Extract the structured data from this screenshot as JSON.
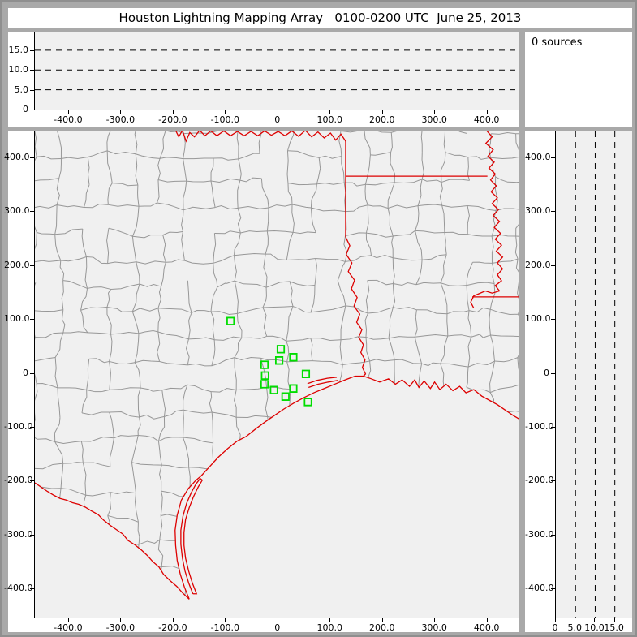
{
  "title": "Houston Lightning Mapping Array   0100-0200 UTC  June 25, 2013",
  "sources_label": "0 sources",
  "colors": {
    "window_bg": "#a9a9a9",
    "panel_bg": "#ffffff",
    "plot_bg": "#f0f0f0",
    "county_line": "#979797",
    "state_border": "#dd0000",
    "station_green": "#00dd00",
    "axis": "#000000"
  },
  "panels": {
    "alt_ew": {
      "y_ticks": [
        {
          "v": 15,
          "label": "15.0"
        },
        {
          "v": 10,
          "label": "10.0"
        },
        {
          "v": 5,
          "label": "5.0"
        },
        {
          "v": 0,
          "label": "0"
        }
      ],
      "x_ticks": [
        {
          "v": -400,
          "label": "-400.0"
        },
        {
          "v": -300,
          "label": "-300.0"
        },
        {
          "v": -200,
          "label": "-200.0"
        },
        {
          "v": -100,
          "label": "-100.0"
        },
        {
          "v": 0,
          "label": "0"
        },
        {
          "v": 100,
          "label": "100.0"
        },
        {
          "v": 200,
          "label": "200.0"
        },
        {
          "v": 300,
          "label": "300.0"
        },
        {
          "v": 400,
          "label": "400.0"
        }
      ],
      "dashed_levels": [
        5,
        10,
        15
      ],
      "x_range": [
        -465,
        461
      ],
      "y_range": [
        0,
        19.7
      ]
    },
    "map": {
      "y_ticks": [
        {
          "v": 400,
          "label": "400.0"
        },
        {
          "v": 300,
          "label": "300.0"
        },
        {
          "v": 200,
          "label": "200.0"
        },
        {
          "v": 100,
          "label": "100.0"
        },
        {
          "v": 0,
          "label": "0"
        },
        {
          "v": -100,
          "label": "-100.0"
        },
        {
          "v": -200,
          "label": "-200.0"
        },
        {
          "v": -300,
          "label": "-300.0"
        },
        {
          "v": -400,
          "label": "-400.0"
        }
      ],
      "x_ticks": [
        {
          "v": -400,
          "label": "-400.0"
        },
        {
          "v": -300,
          "label": "-300.0"
        },
        {
          "v": -200,
          "label": "-200.0"
        },
        {
          "v": -100,
          "label": "-100.0"
        },
        {
          "v": 0,
          "label": "0"
        },
        {
          "v": 100,
          "label": "100.0"
        },
        {
          "v": 200,
          "label": "200.0"
        },
        {
          "v": 300,
          "label": "300.0"
        },
        {
          "v": 400,
          "label": "400.0"
        }
      ],
      "x_range": [
        -465,
        461
      ],
      "y_range": [
        -454,
        448
      ]
    },
    "alt_ns": {
      "x_ticks": [
        {
          "v": 0,
          "label": "0"
        },
        {
          "v": 5,
          "label": "5.0"
        },
        {
          "v": 10,
          "label": "10.0"
        },
        {
          "v": 15,
          "label": "15.0"
        }
      ],
      "y_ticks": [
        {
          "v": 400,
          "label": "400.0"
        },
        {
          "v": 300,
          "label": "300.0"
        },
        {
          "v": 200,
          "label": "200.0"
        },
        {
          "v": 100,
          "label": "100.0"
        },
        {
          "v": 0,
          "label": "0"
        },
        {
          "v": -100,
          "label": "-100.0"
        },
        {
          "v": -200,
          "label": "-200.0"
        },
        {
          "v": -300,
          "label": "-300.0"
        },
        {
          "v": -400,
          "label": "-400.0"
        }
      ],
      "dashed_levels": [
        5,
        10,
        15
      ],
      "x_range": [
        0,
        19.4
      ],
      "y_range": [
        -454,
        448
      ]
    }
  },
  "map_features": {
    "stations": [
      [
        -91,
        96
      ],
      [
        5,
        44
      ],
      [
        29,
        29
      ],
      [
        2,
        23
      ],
      [
        -26,
        15
      ],
      [
        53,
        -2
      ],
      [
        -25,
        -5
      ],
      [
        -26,
        -21
      ],
      [
        29,
        -29
      ],
      [
        -8,
        -32
      ],
      [
        14,
        -44
      ],
      [
        57,
        -54
      ]
    ],
    "red_borders": {
      "red_river": [
        [
          -197,
          452
        ],
        [
          -190,
          438
        ],
        [
          -183,
          450
        ],
        [
          -176,
          430
        ],
        [
          -169,
          446
        ],
        [
          -160,
          438
        ],
        [
          -150,
          450
        ],
        [
          -140,
          440
        ],
        [
          -129,
          449
        ],
        [
          -117,
          440
        ],
        [
          -104,
          449
        ],
        [
          -91,
          440
        ],
        [
          -78,
          448
        ],
        [
          -65,
          440
        ],
        [
          -52,
          448
        ],
        [
          -39,
          440
        ],
        [
          -26,
          449
        ],
        [
          -13,
          441
        ],
        [
          0,
          448
        ],
        [
          13,
          440
        ],
        [
          26,
          449
        ],
        [
          39,
          439
        ],
        [
          52,
          450
        ],
        [
          64,
          438
        ],
        [
          76,
          447
        ],
        [
          88,
          436
        ],
        [
          100,
          445
        ],
        [
          110,
          432
        ],
        [
          120,
          443
        ],
        [
          129,
          430
        ]
      ],
      "tx_ar_line": [
        [
          129,
          430
        ],
        [
          129,
          252
        ]
      ],
      "ar_la_line": [
        [
          129,
          365
        ],
        [
          400,
          365
        ]
      ],
      "sabine_river": [
        [
          129,
          252
        ],
        [
          137,
          236
        ],
        [
          130,
          220
        ],
        [
          141,
          204
        ],
        [
          134,
          188
        ],
        [
          146,
          172
        ],
        [
          140,
          156
        ],
        [
          151,
          140
        ],
        [
          145,
          124
        ],
        [
          156,
          109
        ],
        [
          150,
          94
        ],
        [
          160,
          80
        ],
        [
          154,
          66
        ],
        [
          163,
          52
        ],
        [
          158,
          38
        ],
        [
          166,
          24
        ],
        [
          161,
          10
        ],
        [
          167,
          -2
        ],
        [
          163,
          -6
        ]
      ],
      "mississippi_river": [
        [
          398,
          450
        ],
        [
          409,
          438
        ],
        [
          397,
          426
        ],
        [
          411,
          414
        ],
        [
          401,
          402
        ],
        [
          413,
          391
        ],
        [
          403,
          380
        ],
        [
          415,
          369
        ],
        [
          406,
          358
        ],
        [
          417,
          347
        ],
        [
          407,
          336
        ],
        [
          419,
          325
        ],
        [
          409,
          314
        ],
        [
          421,
          303
        ],
        [
          411,
          292
        ],
        [
          423,
          281
        ],
        [
          413,
          270
        ],
        [
          425,
          259
        ],
        [
          415,
          248
        ],
        [
          427,
          237
        ],
        [
          417,
          226
        ],
        [
          429,
          215
        ],
        [
          419,
          204
        ],
        [
          429,
          193
        ],
        [
          419,
          182
        ],
        [
          427,
          171
        ],
        [
          415,
          162
        ],
        [
          423,
          152
        ],
        [
          409,
          148
        ],
        [
          396,
          152
        ],
        [
          384,
          147
        ],
        [
          374,
          143
        ],
        [
          368,
          131
        ],
        [
          374,
          120
        ]
      ],
      "la_ms_line": [
        [
          371,
          141
        ],
        [
          466,
          141
        ]
      ],
      "coastline": [
        [
          -170,
          -420
        ],
        [
          -179,
          -398
        ],
        [
          -187,
          -374
        ],
        [
          -193,
          -348
        ],
        [
          -196,
          -320
        ],
        [
          -197,
          -292
        ],
        [
          -193,
          -264
        ],
        [
          -185,
          -236
        ],
        [
          -172,
          -215
        ],
        [
          -158,
          -200
        ],
        [
          -147,
          -191
        ],
        [
          -131,
          -174
        ],
        [
          -115,
          -157
        ],
        [
          -97,
          -141
        ],
        [
          -79,
          -127
        ],
        [
          -61,
          -118
        ],
        [
          -43,
          -104
        ],
        [
          -25,
          -91
        ],
        [
          -7,
          -79
        ],
        [
          11,
          -67
        ],
        [
          30,
          -56
        ],
        [
          49,
          -46
        ],
        [
          68,
          -37
        ],
        [
          88,
          -29
        ],
        [
          108,
          -21
        ],
        [
          128,
          -13
        ],
        [
          147,
          -6
        ],
        [
          163,
          -6
        ],
        [
          178,
          -11
        ],
        [
          194,
          -17
        ],
        [
          211,
          -11
        ],
        [
          224,
          -21
        ],
        [
          237,
          -13
        ],
        [
          251,
          -25
        ],
        [
          261,
          -13
        ],
        [
          269,
          -27
        ],
        [
          279,
          -15
        ],
        [
          291,
          -29
        ],
        [
          299,
          -17
        ],
        [
          309,
          -31
        ],
        [
          321,
          -21
        ],
        [
          334,
          -33
        ],
        [
          347,
          -25
        ],
        [
          359,
          -37
        ],
        [
          374,
          -31
        ],
        [
          389,
          -43
        ],
        [
          404,
          -51
        ],
        [
          419,
          -59
        ],
        [
          434,
          -69
        ],
        [
          449,
          -79
        ],
        [
          465,
          -88
        ]
      ],
      "rio_grande": [
        [
          -170,
          -420
        ],
        [
          -183,
          -408
        ],
        [
          -194,
          -396
        ],
        [
          -206,
          -386
        ],
        [
          -219,
          -374
        ],
        [
          -228,
          -360
        ],
        [
          -240,
          -350
        ],
        [
          -250,
          -339
        ],
        [
          -261,
          -329
        ],
        [
          -274,
          -319
        ],
        [
          -287,
          -311
        ],
        [
          -297,
          -299
        ],
        [
          -309,
          -291
        ],
        [
          -321,
          -283
        ],
        [
          -334,
          -273
        ],
        [
          -344,
          -263
        ],
        [
          -357,
          -256
        ],
        [
          -369,
          -249
        ],
        [
          -381,
          -244
        ],
        [
          -393,
          -241
        ],
        [
          -405,
          -236
        ],
        [
          -417,
          -233
        ],
        [
          -429,
          -227
        ],
        [
          -441,
          -220
        ],
        [
          -453,
          -212
        ],
        [
          -465,
          -204
        ]
      ],
      "padre_island": [
        [
          -163,
          -410
        ],
        [
          -171,
          -390
        ],
        [
          -178,
          -368
        ],
        [
          -183,
          -344
        ],
        [
          -186,
          -318
        ],
        [
          -186,
          -292
        ],
        [
          -182,
          -266
        ],
        [
          -175,
          -242
        ],
        [
          -166,
          -222
        ],
        [
          -157,
          -206
        ],
        [
          -149,
          -196
        ],
        [
          -145,
          -199
        ],
        [
          -153,
          -212
        ],
        [
          -162,
          -230
        ],
        [
          -170,
          -250
        ],
        [
          -177,
          -272
        ],
        [
          -180,
          -296
        ],
        [
          -180,
          -320
        ],
        [
          -177,
          -344
        ],
        [
          -171,
          -368
        ],
        [
          -164,
          -390
        ],
        [
          -156,
          -410
        ],
        [
          -163,
          -410
        ]
      ],
      "galveston_island": [
        [
          56,
          -20
        ],
        [
          74,
          -14
        ],
        [
          94,
          -10
        ],
        [
          112,
          -8
        ]
      ],
      "bolivar_peninsula": [
        [
          58,
          -27
        ],
        [
          76,
          -21
        ],
        [
          96,
          -17
        ],
        [
          114,
          -14
        ]
      ]
    }
  }
}
